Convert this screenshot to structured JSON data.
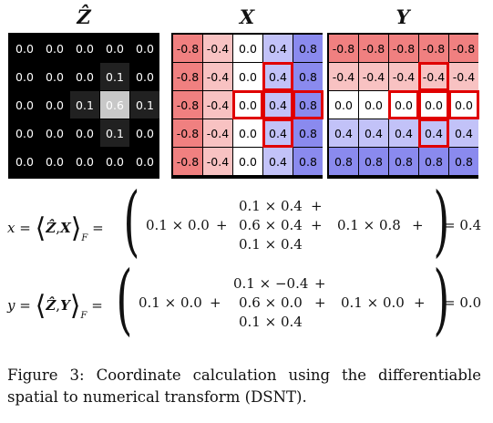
{
  "grids": [
    {
      "title": "Ẑ",
      "cells": [
        [
          "0.0",
          "0.0",
          "0.0",
          "0.0",
          "0.0"
        ],
        [
          "0.0",
          "0.0",
          "0.0",
          "0.1",
          "0.0"
        ],
        [
          "0.0",
          "0.0",
          "0.1",
          "0.6",
          "0.1"
        ],
        [
          "0.0",
          "0.0",
          "0.0",
          "0.1",
          "0.0"
        ],
        [
          "0.0",
          "0.0",
          "0.0",
          "0.0",
          "0.0"
        ]
      ]
    },
    {
      "title": "X",
      "cells": [
        [
          "-0.8",
          "-0.4",
          "0.0",
          "0.4",
          "0.8"
        ],
        [
          "-0.8",
          "-0.4",
          "0.0",
          "0.4",
          "0.8"
        ],
        [
          "-0.8",
          "-0.4",
          "0.0",
          "0.4",
          "0.8"
        ],
        [
          "-0.8",
          "-0.4",
          "0.0",
          "0.4",
          "0.8"
        ],
        [
          "-0.8",
          "-0.4",
          "0.0",
          "0.4",
          "0.8"
        ]
      ]
    },
    {
      "title": "Y",
      "cells": [
        [
          "-0.8",
          "-0.8",
          "-0.8",
          "-0.8",
          "-0.8"
        ],
        [
          "-0.4",
          "-0.4",
          "-0.4",
          "-0.4",
          "-0.4"
        ],
        [
          "0.0",
          "0.0",
          "0.0",
          "0.0",
          "0.0"
        ],
        [
          "0.4",
          "0.4",
          "0.4",
          "0.4",
          "0.4"
        ],
        [
          "0.8",
          "0.8",
          "0.8",
          "0.8",
          "0.8"
        ]
      ]
    }
  ],
  "colors": {
    "neg_strong": "#f08080",
    "neg_mild": "#f8c2c2",
    "zero": "#ffffff",
    "pos_mild": "#c2c2f8",
    "pos_strong": "#8a8aee",
    "highlight": "#e00000"
  },
  "equations": {
    "x": {
      "lhs": "x",
      "mat_a": "Ẑ",
      "mat_b": "X",
      "sub": "F",
      "eq": "=",
      "term1": "0.1 × 0.0",
      "plus1": "+",
      "mid_top": "0.1 × 0.4",
      "mid_top_plus": "+",
      "mid_mid": "0.6 × 0.4",
      "mid_mid_plus": "+",
      "mid_bot": "0.1 × 0.4",
      "term3": "0.1 × 0.8",
      "plus3": "+",
      "result": "= 0.4"
    },
    "y": {
      "lhs": "y",
      "mat_a": "Ẑ",
      "mat_b": "Y",
      "sub": "F",
      "eq": "=",
      "term1": "0.1 × 0.0",
      "plus1": "+",
      "mid_top": "0.1 × −0.4",
      "mid_top_plus": "+",
      "mid_mid": "0.6 × 0.0",
      "mid_mid_plus": "+",
      "mid_bot": "0.1 × 0.4",
      "term3": "0.1 × 0.0",
      "plus3": "+",
      "result": "= 0.0"
    }
  },
  "caption": "Figure 3: Coordinate calculation using the differentiable spatial to numerical transform (DSNT)."
}
